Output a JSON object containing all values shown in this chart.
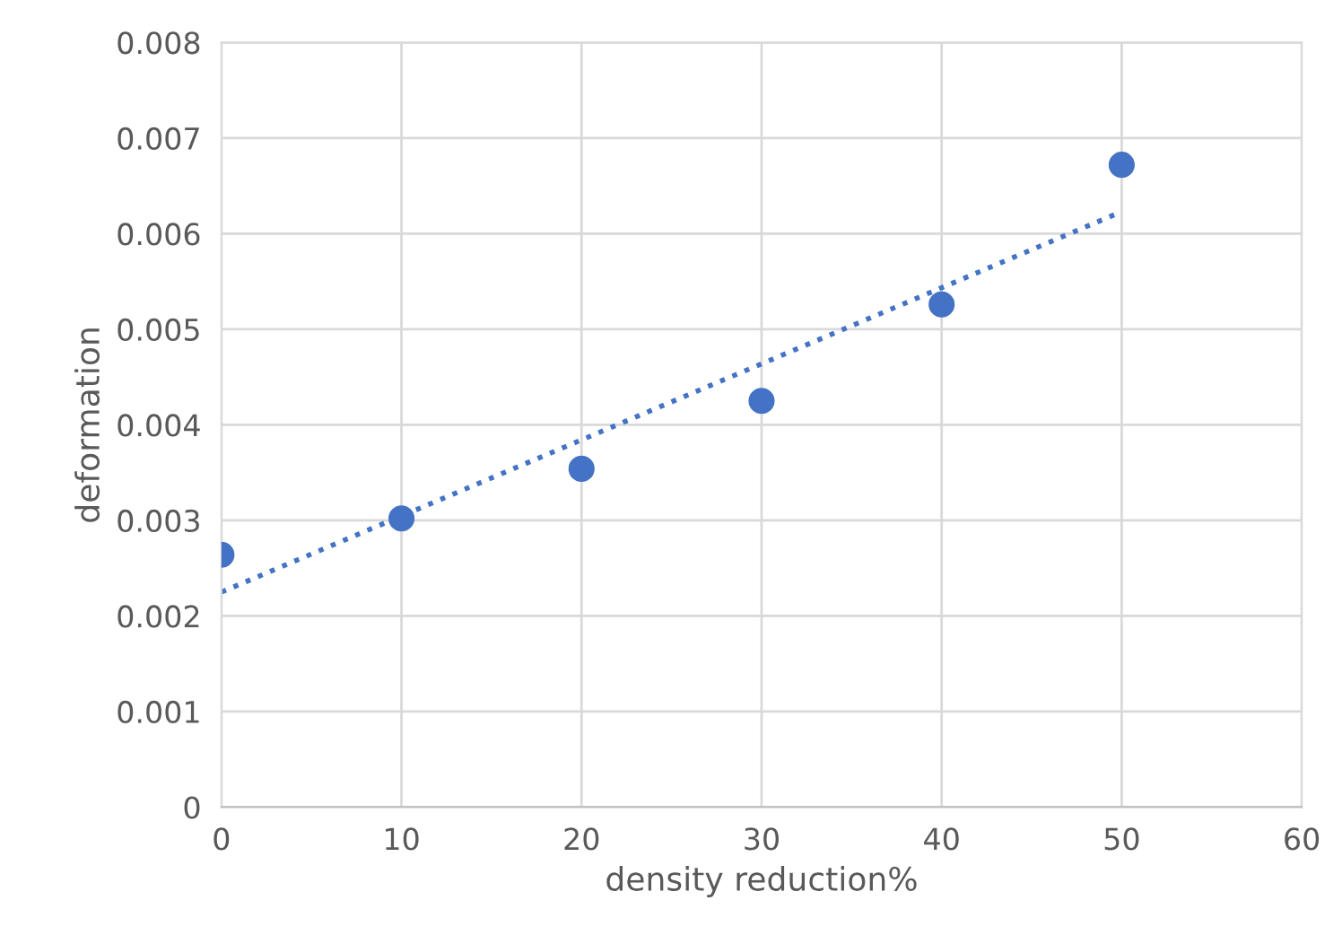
{
  "chart_data": {
    "type": "scatter",
    "xlabel": "density reduction%",
    "ylabel": "deformation",
    "series": [
      {
        "color": "#4472c4",
        "marker": "circle",
        "x": [
          0,
          10,
          20,
          30,
          40,
          50
        ],
        "values": [
          0.00264,
          0.00302,
          0.00354,
          0.00425,
          0.00526,
          0.00672
        ]
      },
      {
        "type": "line",
        "color": "#4472c4",
        "line_style": "dotted",
        "marker": "none",
        "x": [
          0,
          50
        ],
        "values": [
          0.00225,
          0.00623
        ]
      }
    ],
    "xlim": [
      0,
      60
    ],
    "xticks": [
      0,
      10,
      20,
      30,
      40,
      50,
      60
    ],
    "ylim": [
      0,
      0.008
    ],
    "yticks": [
      0,
      0.001,
      0.002,
      0.003,
      0.004,
      0.005,
      0.006,
      0.007,
      0.008
    ],
    "grid": true
  }
}
